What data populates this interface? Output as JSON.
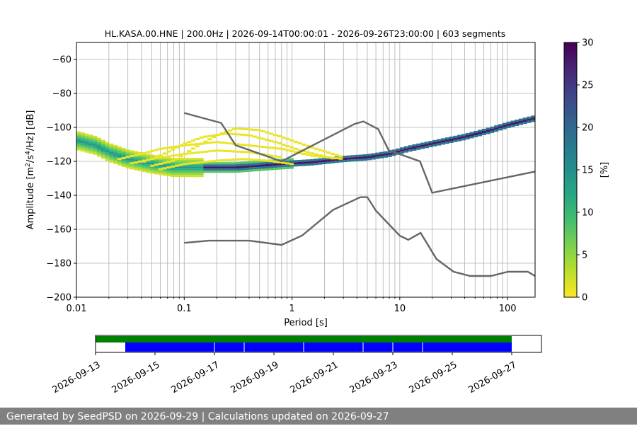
{
  "chart_data": [
    {
      "type": "heatmap",
      "title": "HL.KASA.00.HNE | 200.0Hz | 2026-09-14T00:00:01 - 2026-09-26T23:00:00 | 603 segments",
      "xlabel": "Period [s]",
      "ylabel_parts": [
        "Amplitude [m",
        "2",
        "/s",
        "4",
        "/Hz] [dB]"
      ],
      "xscale": "log",
      "xlim": [
        0.01,
        180
      ],
      "ylim": [
        -200,
        -50
      ],
      "xticks": [
        0.01,
        0.1,
        1,
        10,
        100
      ],
      "xtick_labels": [
        "0.01",
        "0.1",
        "1",
        "10",
        "100"
      ],
      "yticks": [
        -200,
        -180,
        -160,
        -140,
        -120,
        -100,
        -80,
        -60
      ],
      "ytick_labels": [
        "−200",
        "−180",
        "−160",
        "−140",
        "−120",
        "−100",
        "−80",
        "−60"
      ],
      "grid": "vertical",
      "colorbar": {
        "label": "[%]",
        "range": [
          0,
          30
        ],
        "ticks": [
          0,
          5,
          10,
          15,
          20,
          25,
          30
        ],
        "tick_labels": [
          "0",
          "5",
          "10",
          "15",
          "20",
          "25",
          "30"
        ],
        "colormap": "viridis_r"
      },
      "psd_main": {
        "period": [
          0.01,
          0.015,
          0.02,
          0.03,
          0.05,
          0.08,
          0.12,
          0.2,
          0.3,
          0.5,
          0.8,
          1.5,
          3,
          5,
          8,
          12,
          20,
          40,
          70,
          100,
          180
        ],
        "db": [
          -107,
          -110,
          -114,
          -118,
          -121,
          -123,
          -123,
          -123,
          -123,
          -122,
          -121,
          -120,
          -118,
          -117,
          -115,
          -112,
          -109,
          -105,
          -101,
          -98,
          -94
        ]
      },
      "psd_scatter": [
        {
          "period": [
            0.025,
            0.04,
            0.06,
            0.1,
            0.2,
            0.4,
            0.8,
            1.5,
            3
          ],
          "db": [
            -118,
            -115,
            -112,
            -110,
            -108,
            -110,
            -112,
            -116,
            -118
          ]
        },
        {
          "period": [
            0.04,
            0.06,
            0.1,
            0.15,
            0.25,
            0.4,
            0.7,
            1.2,
            2.5
          ],
          "db": [
            -120,
            -116,
            -109,
            -105,
            -103,
            -104,
            -108,
            -113,
            -118
          ]
        },
        {
          "period": [
            0.05,
            0.08,
            0.12,
            0.2,
            0.3,
            0.5,
            0.8,
            1.5,
            3
          ],
          "db": [
            -122,
            -119,
            -112,
            -104,
            -100,
            -101,
            -105,
            -111,
            -117
          ]
        },
        {
          "period": [
            0.03,
            0.05,
            0.1,
            0.2,
            0.4,
            0.8
          ],
          "db": [
            -121,
            -118,
            -115,
            -113,
            -114,
            -117
          ]
        },
        {
          "period": [
            0.06,
            0.1,
            0.2,
            0.35,
            0.6,
            1
          ],
          "db": [
            -124,
            -121,
            -119,
            -118,
            -119,
            -121
          ]
        }
      ],
      "noise_models": [
        {
          "period": [
            0.1,
            0.22,
            0.3,
            0.8,
            3.8,
            4.6,
            6.3,
            7.9,
            15.4,
            20,
            354.8
          ],
          "db": [
            -91.5,
            -97.4,
            -110.5,
            -120.0,
            -98.0,
            -96.5,
            -101.0,
            -113.5,
            -120.0,
            -138.5,
            -126.0
          ]
        },
        {
          "period": [
            0.1,
            0.17,
            0.4,
            0.8,
            1.24,
            2.4,
            4.3,
            5.0,
            6.0,
            10.0,
            12.0,
            15.6,
            21.9,
            31.6,
            45.0,
            70.0,
            101.0,
            154.0,
            328.0
          ],
          "db": [
            -168.0,
            -166.7,
            -166.7,
            -169.2,
            -163.7,
            -148.6,
            -141.1,
            -141.1,
            -149.0,
            -163.8,
            -166.2,
            -162.1,
            -177.5,
            -185.0,
            -187.5,
            -187.5,
            -185.0,
            -185.0,
            -187.5
          ]
        }
      ]
    },
    {
      "type": "timeline",
      "xlim": [
        "2026-09-13",
        "2026-09-28"
      ],
      "xtick_labels": [
        "2026-09-13",
        "2026-09-15",
        "2026-09-17",
        "2026-09-19",
        "2026-09-21",
        "2026-09-23",
        "2026-09-25",
        "2026-09-27"
      ],
      "data_available": {
        "start": "2026-09-13T00:00:00",
        "end": "2026-09-27T00:00:00",
        "color": "#008000"
      },
      "processed": {
        "start": "2026-09-14T00:00:01",
        "end": "2026-09-27T00:00:00",
        "color": "#0000ff",
        "gaps": [
          "2026-09-17T00:00:00",
          "2026-09-18T00:00:00",
          "2026-09-20T00:00:00",
          "2026-09-22T00:00:00",
          "2026-09-23T00:00:00",
          "2026-09-24T00:00:00"
        ]
      }
    }
  ],
  "footer": {
    "text": "Generated by SeedPSD on 2026-09-29 | Calculations updated on 2026-09-27"
  }
}
